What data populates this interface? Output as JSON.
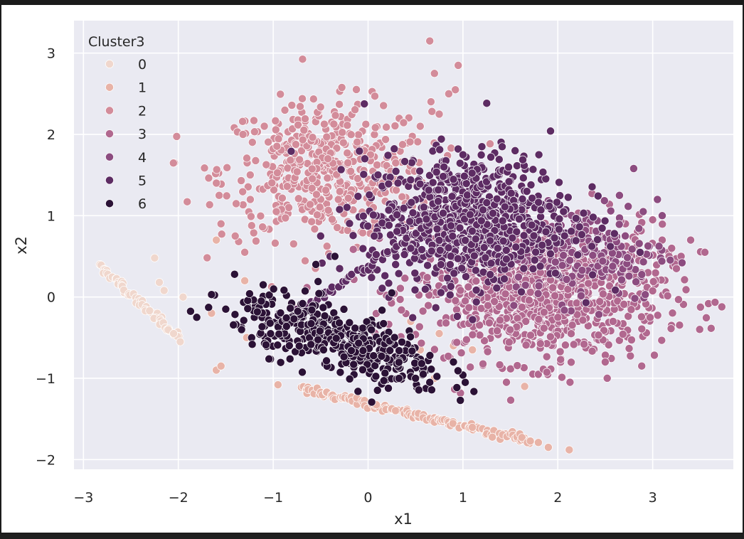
{
  "chart_data": {
    "type": "scatter",
    "title": "",
    "xlabel": "x1",
    "ylabel": "x2",
    "xlim": [
      -3.1,
      3.85
    ],
    "ylim": [
      -2.12,
      3.4
    ],
    "xticks": [
      -3,
      -2,
      -1,
      0,
      1,
      2,
      3
    ],
    "yticks": [
      -2,
      -1,
      0,
      1,
      2,
      3
    ],
    "xtick_labels": [
      "−3",
      "−2",
      "−1",
      "0",
      "1",
      "2",
      "3"
    ],
    "ytick_labels": [
      "−2",
      "−1",
      "0",
      "1",
      "2",
      "3"
    ],
    "grid": true,
    "background": "#eaeaf2",
    "legend": {
      "title": "Cluster3",
      "placement": "top-left",
      "entries": [
        "0",
        "1",
        "2",
        "3",
        "4",
        "5",
        "6"
      ]
    },
    "colors": [
      "#f0d7cd",
      "#e8b3a7",
      "#d38c9a",
      "#b1688f",
      "#8c4c80",
      "#5d2c63",
      "#2b1236"
    ],
    "series": [
      {
        "name": "0",
        "shape": "line",
        "from": [
          -2.82,
          0.38
        ],
        "to": [
          -1.98,
          -0.52
        ],
        "count": 60,
        "jitter": 0.02,
        "extra": [
          [
            -2.25,
            0.48
          ],
          [
            -2.2,
            0.18
          ],
          [
            -2.15,
            0.08
          ],
          [
            -1.95,
            0.0
          ],
          [
            -2.05,
            -0.45
          ]
        ]
      },
      {
        "name": "1",
        "shape": "line",
        "from": [
          -0.72,
          -1.13
        ],
        "to": [
          1.75,
          -1.78
        ],
        "count": 150,
        "jitter": 0.025,
        "extra": [
          [
            -1.6,
            -0.9
          ],
          [
            -1.55,
            -0.85
          ],
          [
            -1.65,
            -0.2
          ],
          [
            -1.6,
            0.7
          ],
          [
            -1.28,
            -0.5
          ],
          [
            -1.3,
            0.2
          ],
          [
            -0.95,
            -1.08
          ],
          [
            0.35,
            -0.55
          ],
          [
            0.45,
            -0.3
          ],
          [
            0.55,
            -0.65
          ],
          [
            0.6,
            -0.9
          ],
          [
            0.7,
            -1.0
          ],
          [
            0.75,
            -0.45
          ],
          [
            0.9,
            -0.6
          ],
          [
            1.1,
            -0.65
          ],
          [
            1.65,
            -1.1
          ],
          [
            1.9,
            -1.85
          ],
          [
            2.12,
            -1.88
          ]
        ]
      },
      {
        "name": "2",
        "shape": "blob",
        "center": [
          -0.45,
          1.55
        ],
        "spread": [
          0.55,
          0.42
        ],
        "count": 480,
        "extra": [
          [
            0.65,
            3.15
          ],
          [
            0.7,
            2.75
          ],
          [
            0.95,
            2.85
          ],
          [
            0.92,
            2.55
          ],
          [
            0.85,
            2.5
          ],
          [
            0.75,
            2.25
          ],
          [
            0.55,
            2.1
          ],
          [
            -1.55,
            0.9
          ],
          [
            -1.4,
            0.75
          ],
          [
            -1.3,
            0.55
          ]
        ]
      },
      {
        "name": "3",
        "shape": "blob",
        "center": [
          1.8,
          0.05
        ],
        "spread": [
          0.65,
          0.42
        ],
        "count": 900,
        "extra": [
          [
            3.1,
            0.7
          ],
          [
            3.2,
            0.6
          ],
          [
            3.3,
            0.5
          ],
          [
            3.4,
            0.7
          ],
          [
            3.55,
            0.55
          ],
          [
            3.25,
            0.35
          ],
          [
            3.0,
            0.95
          ],
          [
            2.95,
            0.3
          ],
          [
            2.5,
            -0.8
          ]
        ]
      },
      {
        "name": "4",
        "shape": "blob",
        "center": [
          2.3,
          0.55
        ],
        "spread": [
          0.45,
          0.3
        ],
        "count": 180,
        "extra": [
          [
            2.8,
            1.58
          ],
          [
            2.65,
            1.25
          ],
          [
            2.9,
            1.05
          ],
          [
            3.05,
            1.2
          ],
          [
            3.1,
            1.0
          ]
        ]
      },
      {
        "name": "5",
        "shape": "blob",
        "center": [
          1.05,
          0.95
        ],
        "spread": [
          0.55,
          0.4
        ],
        "count": 750,
        "extra": [
          [
            1.2,
            1.85
          ],
          [
            1.55,
            1.8
          ],
          [
            1.8,
            1.75
          ],
          [
            1.0,
            1.75
          ],
          [
            0.8,
            1.6
          ],
          [
            -0.5,
            0.75
          ],
          [
            -0.4,
            0.5
          ],
          [
            -0.3,
            0.35
          ]
        ],
        "line": {
          "from": [
            -0.75,
            -0.2
          ],
          "to": [
            1.5,
            1.6
          ],
          "count": 80
        }
      },
      {
        "name": "6",
        "shape": "blob",
        "center": [
          -0.3,
          -0.55
        ],
        "spread": [
          0.55,
          0.2
        ],
        "tilt": -0.35,
        "count": 420,
        "extra": [
          [
            -1.65,
            0.03
          ],
          [
            -1.5,
            -0.15
          ],
          [
            -0.35,
            0.5
          ],
          [
            -0.55,
            0.4
          ],
          [
            0.25,
            0.05
          ],
          [
            0.9,
            -0.8
          ],
          [
            0.65,
            -1.05
          ],
          [
            0.5,
            -1.0
          ]
        ]
      }
    ]
  }
}
